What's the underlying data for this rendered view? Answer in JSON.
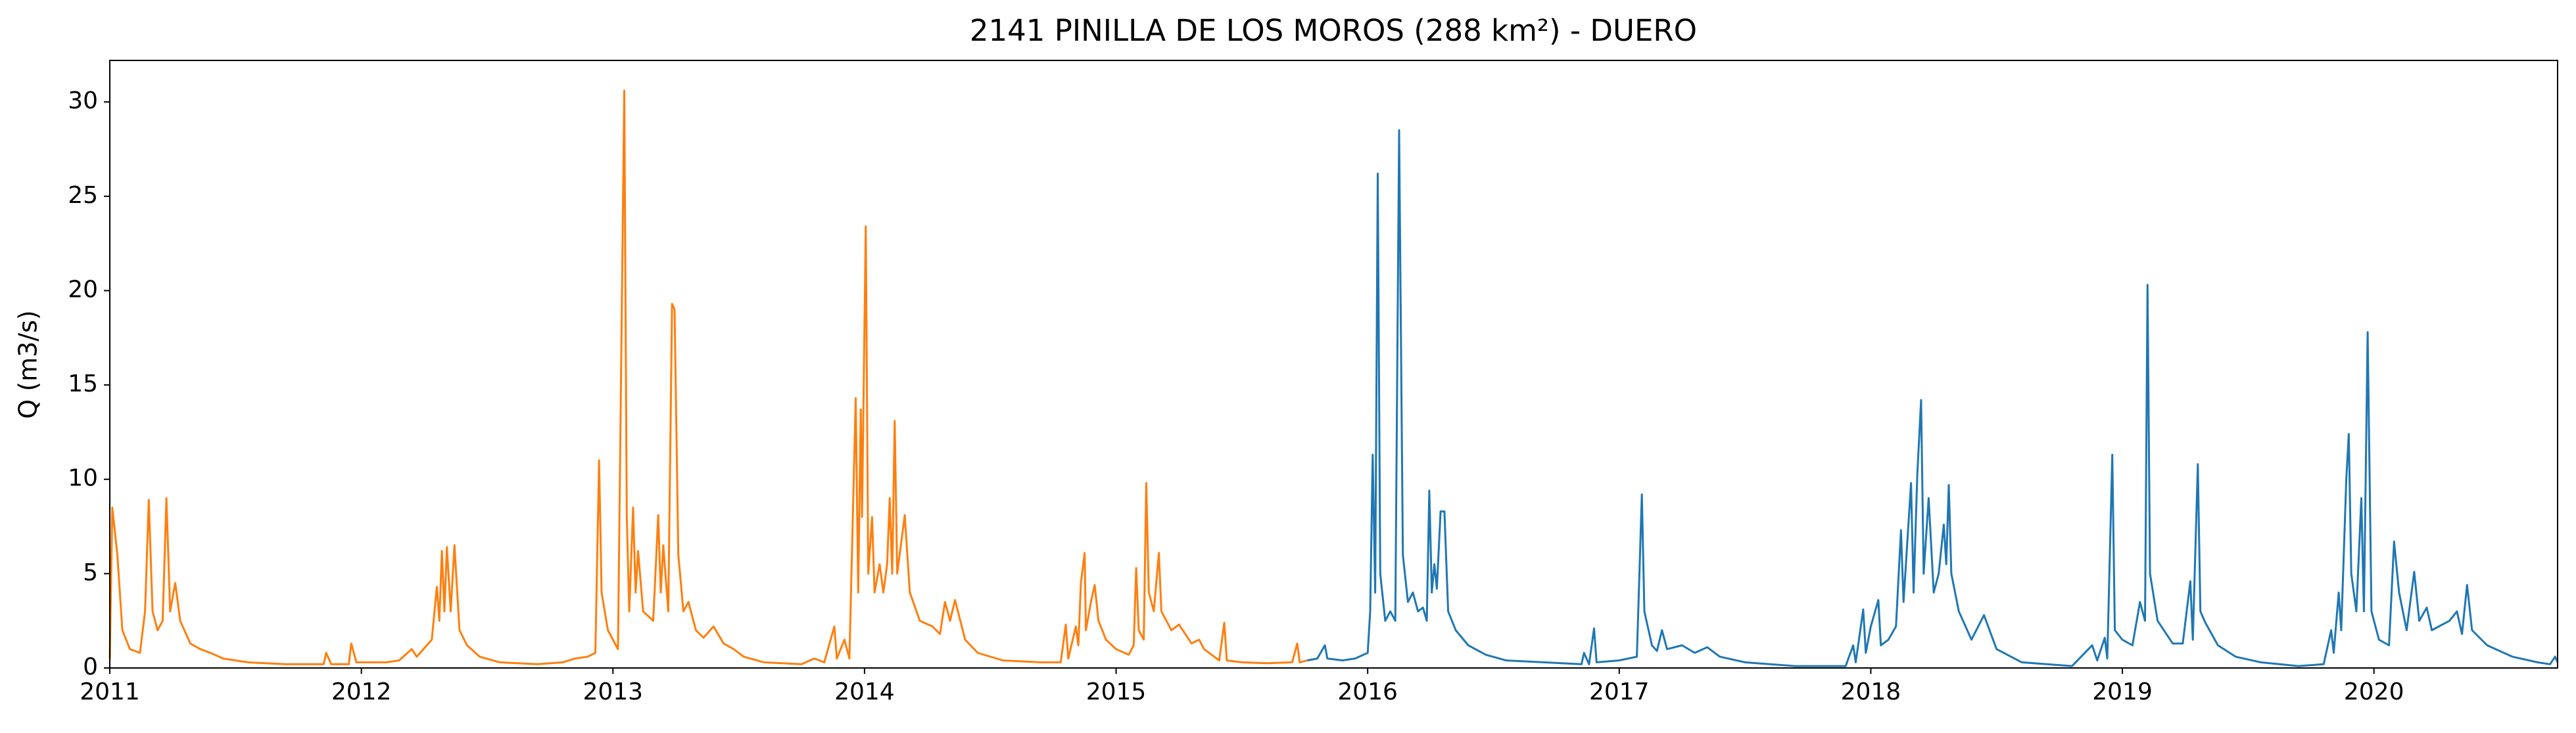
{
  "chart_data": {
    "type": "line",
    "title": "2141 PINILLA DE LOS MOROS (288 km²) - DUERO",
    "y_label": "Q (m3/s)",
    "xlim": [
      2011,
      2020.73
    ],
    "xticks": [
      2011,
      2012,
      2013,
      2014,
      2015,
      2016,
      2017,
      2018,
      2019,
      2020
    ],
    "ylim": [
      0,
      32.2
    ],
    "yticks": [
      0,
      5,
      10,
      15,
      20,
      25,
      30
    ],
    "grid": false,
    "series": [
      {
        "color": "#ff7f0e",
        "x": [
          2011.0,
          2011.01,
          2011.03,
          2011.05,
          2011.08,
          2011.12,
          2011.14,
          2011.155,
          2011.17,
          2011.19,
          2011.21,
          2011.225,
          2011.24,
          2011.26,
          2011.28,
          2011.32,
          2011.36,
          2011.4,
          2011.45,
          2011.55,
          2011.7,
          2011.85,
          2011.86,
          2011.88,
          2011.95,
          2011.96,
          2011.98,
          2012.1,
          2012.15,
          2012.2,
          2012.22,
          2012.28,
          2012.3,
          2012.31,
          2012.32,
          2012.33,
          2012.34,
          2012.355,
          2012.37,
          2012.39,
          2012.42,
          2012.47,
          2012.55,
          2012.7,
          2012.8,
          2012.85,
          2012.9,
          2012.93,
          2012.945,
          2012.955,
          2012.98,
          2013.02,
          2013.045,
          2013.055,
          2013.065,
          2013.08,
          2013.09,
          2013.1,
          2013.12,
          2013.16,
          2013.18,
          2013.19,
          2013.2,
          2013.22,
          2013.235,
          2013.245,
          2013.26,
          2013.28,
          2013.3,
          2013.33,
          2013.36,
          2013.4,
          2013.44,
          2013.48,
          2013.52,
          2013.6,
          2013.75,
          2013.8,
          2013.84,
          2013.88,
          2013.89,
          2013.92,
          2013.94,
          2013.965,
          2013.975,
          2013.985,
          2013.99,
          2014.005,
          2014.015,
          2014.03,
          2014.04,
          2014.06,
          2014.075,
          2014.09,
          2014.1,
          2014.11,
          2014.12,
          2014.13,
          2014.16,
          2014.18,
          2014.22,
          2014.27,
          2014.3,
          2014.32,
          2014.34,
          2014.36,
          2014.4,
          2014.45,
          2014.55,
          2014.7,
          2014.78,
          2014.8,
          2014.81,
          2014.84,
          2014.85,
          2014.86,
          2014.875,
          2014.88,
          2014.9,
          2014.915,
          2014.93,
          2014.96,
          2015.0,
          2015.05,
          2015.07,
          2015.08,
          2015.09,
          2015.11,
          2015.12,
          2015.13,
          2015.15,
          2015.17,
          2015.18,
          2015.22,
          2015.25,
          2015.3,
          2015.33,
          2015.35,
          2015.38,
          2015.41,
          2015.43,
          2015.44,
          2015.5,
          2015.6,
          2015.7,
          2015.72,
          2015.73,
          2015.76
        ],
        "values": [
          0.5,
          8.5,
          6,
          2,
          1,
          0.8,
          3,
          8.9,
          3,
          2,
          2.5,
          9.0,
          3,
          4.5,
          2.5,
          1.3,
          1.0,
          0.8,
          0.5,
          0.3,
          0.2,
          0.2,
          0.8,
          0.2,
          0.2,
          1.3,
          0.3,
          0.3,
          0.4,
          1.0,
          0.6,
          1.5,
          4.3,
          2.5,
          6.2,
          3,
          6.4,
          3,
          6.5,
          2,
          1.2,
          0.6,
          0.3,
          0.2,
          0.3,
          0.5,
          0.6,
          0.8,
          11,
          4,
          2,
          1,
          30.6,
          8,
          3,
          8.5,
          4,
          6.2,
          3,
          2.5,
          8.1,
          4,
          6.5,
          3,
          19.3,
          19,
          6,
          3,
          3.5,
          2,
          1.6,
          2.2,
          1.3,
          1.0,
          0.6,
          0.3,
          0.2,
          0.5,
          0.3,
          2.2,
          0.5,
          1.5,
          0.5,
          14.3,
          4,
          13.7,
          8,
          23.4,
          5,
          8,
          4,
          5.5,
          4,
          5.5,
          9,
          5,
          13.1,
          5,
          8.1,
          4,
          2.5,
          2.2,
          1.8,
          3.5,
          2.5,
          3.6,
          1.5,
          0.8,
          0.4,
          0.3,
          0.3,
          2.3,
          0.5,
          2.2,
          1.2,
          4.5,
          6.1,
          2,
          3.5,
          4.4,
          2.5,
          1.5,
          1.0,
          0.7,
          1.2,
          5.3,
          2,
          1.5,
          9.8,
          4,
          3,
          6.1,
          3,
          2,
          2.3,
          1.3,
          1.5,
          1,
          0.7,
          0.4,
          2.4,
          0.4,
          0.3,
          0.25,
          0.3,
          1.3,
          0.3,
          0.4
        ]
      },
      {
        "color": "#1f77b4",
        "x": [
          2015.76,
          2015.8,
          2015.83,
          2015.84,
          2015.9,
          2015.95,
          2016.0,
          2016.01,
          2016.02,
          2016.03,
          2016.04,
          2016.05,
          2016.07,
          2016.09,
          2016.11,
          2016.125,
          2016.14,
          2016.16,
          2016.18,
          2016.2,
          2016.22,
          2016.235,
          2016.245,
          2016.255,
          2016.265,
          2016.275,
          2016.29,
          2016.305,
          2016.32,
          2016.35,
          2016.4,
          2016.47,
          2016.55,
          2016.7,
          2016.85,
          2016.86,
          2016.88,
          2016.9,
          2016.91,
          2017.0,
          2017.07,
          2017.09,
          2017.1,
          2017.13,
          2017.15,
          2017.17,
          2017.19,
          2017.25,
          2017.3,
          2017.35,
          2017.4,
          2017.5,
          2017.7,
          2017.9,
          2017.93,
          2017.94,
          2017.97,
          2017.98,
          2018.0,
          2018.03,
          2018.04,
          2018.07,
          2018.1,
          2018.12,
          2018.13,
          2018.16,
          2018.17,
          2018.185,
          2018.2,
          2018.21,
          2018.23,
          2018.25,
          2018.27,
          2018.29,
          2018.3,
          2018.31,
          2018.32,
          2018.35,
          2018.4,
          2018.45,
          2018.5,
          2018.6,
          2018.8,
          2018.88,
          2018.9,
          2018.93,
          2018.94,
          2018.96,
          2018.97,
          2019.0,
          2019.04,
          2019.07,
          2019.09,
          2019.1,
          2019.11,
          2019.14,
          2019.2,
          2019.24,
          2019.27,
          2019.28,
          2019.3,
          2019.31,
          2019.33,
          2019.38,
          2019.45,
          2019.55,
          2019.7,
          2019.8,
          2019.83,
          2019.84,
          2019.86,
          2019.87,
          2019.89,
          2019.9,
          2019.91,
          2019.93,
          2019.95,
          2019.96,
          2019.975,
          2019.99,
          2020.02,
          2020.06,
          2020.08,
          2020.1,
          2020.13,
          2020.16,
          2020.18,
          2020.21,
          2020.23,
          2020.3,
          2020.33,
          2020.35,
          2020.37,
          2020.39,
          2020.45,
          2020.55,
          2020.65,
          2020.7,
          2020.72,
          2020.73
        ],
        "values": [
          0.4,
          0.5,
          1.2,
          0.5,
          0.4,
          0.5,
          0.8,
          3,
          11.3,
          4,
          26.2,
          5,
          2.5,
          3,
          2.5,
          28.5,
          6,
          3.5,
          4,
          3,
          3.2,
          2.5,
          9.4,
          4,
          5.5,
          4.2,
          8.3,
          8.3,
          3,
          2,
          1.2,
          0.7,
          0.4,
          0.3,
          0.2,
          0.8,
          0.2,
          2.1,
          0.3,
          0.4,
          0.6,
          9.2,
          3,
          1.2,
          0.9,
          2.0,
          1,
          1.2,
          0.8,
          1.1,
          0.6,
          0.3,
          0.1,
          0.1,
          1.2,
          0.3,
          3.1,
          0.8,
          2.2,
          3.6,
          1.2,
          1.5,
          2.2,
          7.3,
          3.5,
          9.8,
          4,
          10.3,
          14.2,
          5,
          9,
          4,
          5,
          7.6,
          5.5,
          9.7,
          5,
          3,
          1.5,
          2.8,
          1.0,
          0.3,
          0.1,
          1.2,
          0.4,
          1.6,
          0.5,
          11.3,
          2,
          1.5,
          1.2,
          3.5,
          2.5,
          20.3,
          5,
          2.5,
          1.3,
          1.3,
          4.6,
          1.5,
          10.8,
          3,
          2.4,
          1.2,
          0.6,
          0.3,
          0.1,
          0.2,
          2.0,
          0.8,
          4,
          2,
          10,
          12.4,
          5,
          3,
          9,
          3,
          17.8,
          3,
          1.5,
          1.2,
          6.7,
          4,
          2,
          5.1,
          2.5,
          3.2,
          2,
          2.5,
          3,
          1.8,
          4.4,
          2,
          1.2,
          0.6,
          0.3,
          0.2,
          0.6,
          0.3
        ]
      }
    ]
  }
}
